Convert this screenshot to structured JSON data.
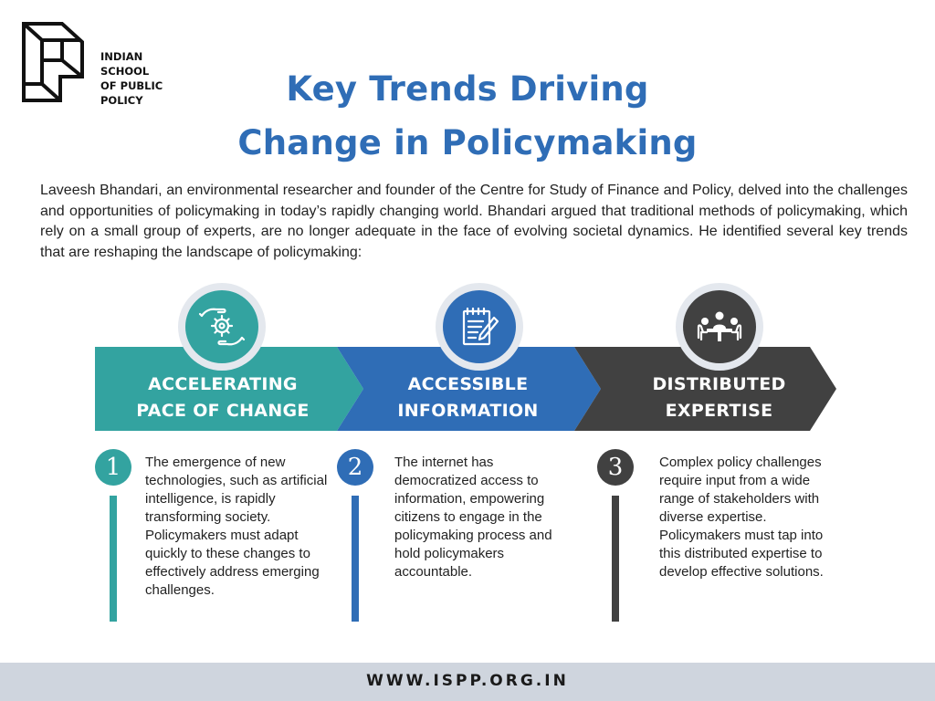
{
  "logo": {
    "lines": [
      "INDIAN",
      "SCHOOL",
      "OF PUBLIC",
      "POLICY"
    ]
  },
  "title": {
    "line1": "Key Trends Driving",
    "line2": "Change in Policymaking"
  },
  "intro": "Laveesh Bhandari, an environmental researcher and founder of the Centre for Study of Finance and Policy, delved into the challenges and opportunities of policymaking in today’s rapidly changing world. Bhandari argued that traditional methods of policymaking, which rely on a small group of experts, are no longer adequate in the face of evolving societal dynamics. He identified several key trends that are reshaping the landscape of policymaking:",
  "colors": {
    "teal": "#33a3a0",
    "blue": "#2f6db6",
    "dark": "#414141",
    "title": "#2f6db6"
  },
  "trends": [
    {
      "label_line1": "ACCELERATING",
      "label_line2": "PACE OF CHANGE",
      "number": "1",
      "icon": "gears-hands-icon",
      "description": "The emergence of new technologies, such as artificial intelligence, is rapidly transforming society. Policymakers must adapt quickly to these changes to effectively address emerging challenges."
    },
    {
      "label_line1": "ACCESSIBLE",
      "label_line2": "INFORMATION",
      "number": "2",
      "icon": "notepad-pencil-icon",
      "description": "The internet has democratized access to information, empowering citizens to engage in the policymaking process and hold policymakers accountable."
    },
    {
      "label_line1": "DISTRIBUTED",
      "label_line2": "EXPERTISE",
      "number": "3",
      "icon": "meeting-table-icon",
      "description": "Complex policy challenges require input from a wide range of stakeholders with diverse expertise. Policymakers must tap into this distributed expertise to develop effective solutions."
    }
  ],
  "footer": {
    "url": "WWW.ISPP.ORG.IN"
  }
}
